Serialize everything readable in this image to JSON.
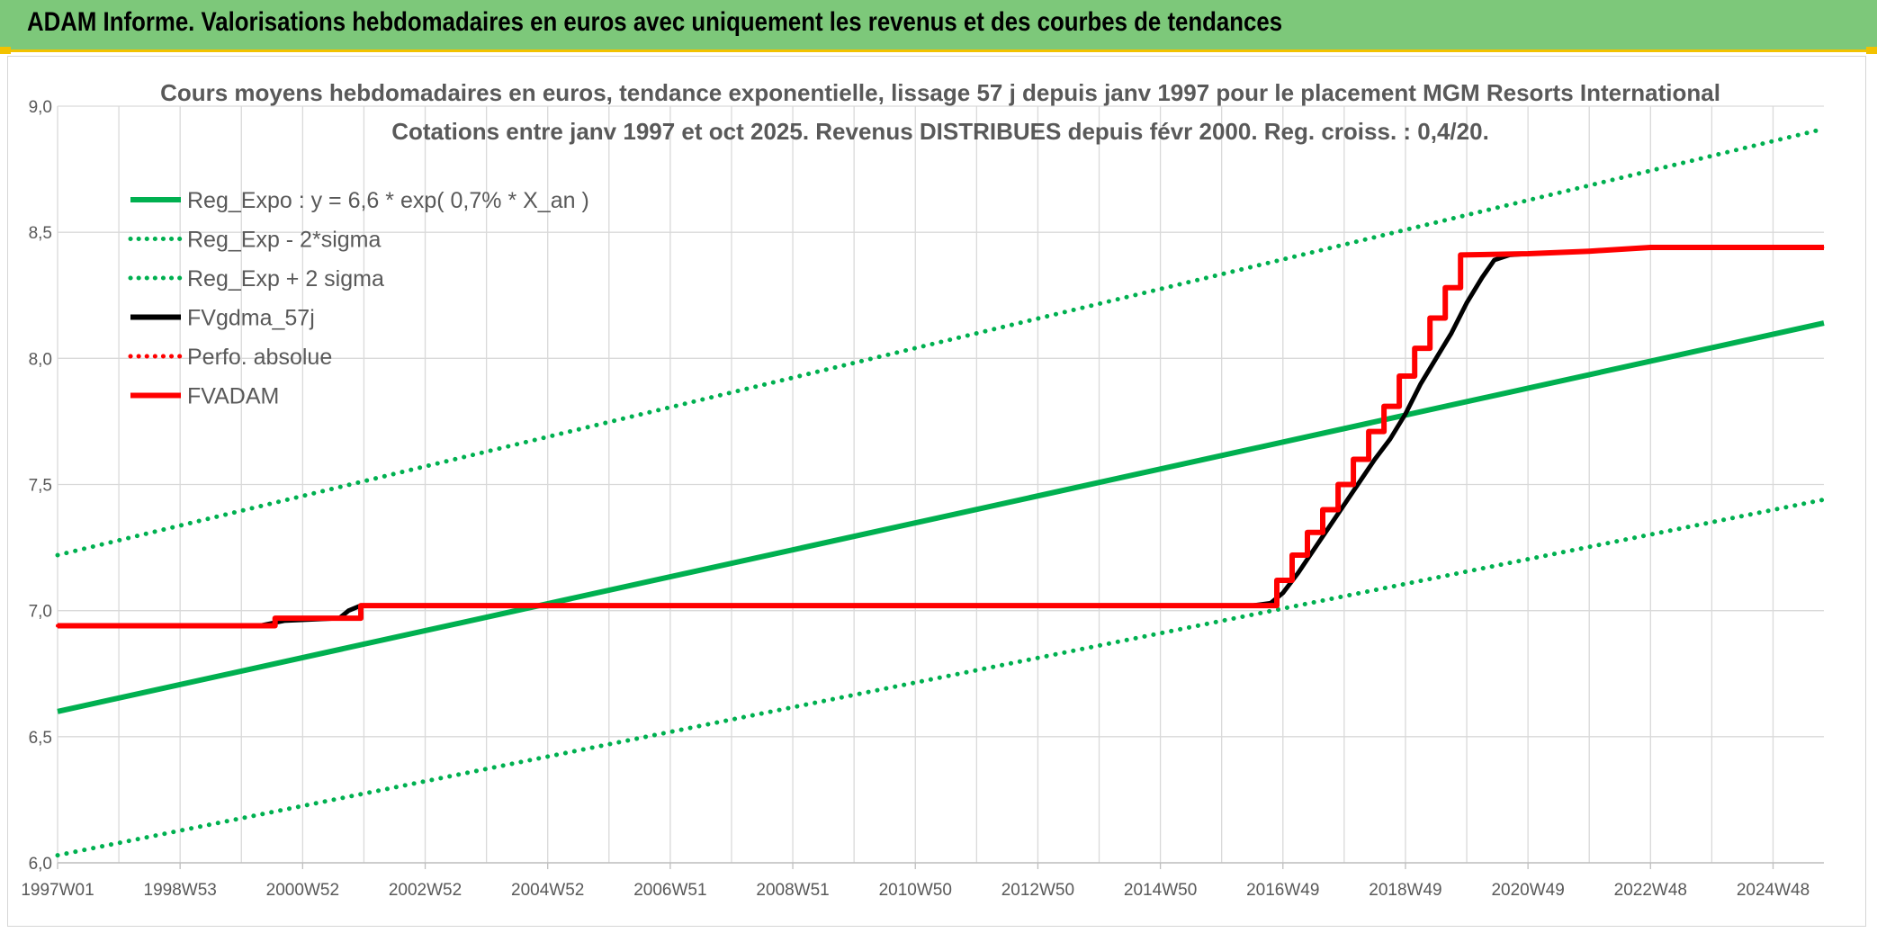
{
  "header": {
    "title": "ADAM Informe. Valorisations hebdomadaires en euros avec uniquement les revenus et des courbes de tendances"
  },
  "colors": {
    "header_bg": "#7dc87a",
    "accent_yellow": "#f2c200",
    "green": "#00b050",
    "black": "#000000",
    "red": "#ff0000",
    "grid": "#d9d9d9",
    "text": "#595959"
  },
  "chart_data": {
    "type": "line",
    "title": "Cours moyens hebdomadaires en euros, tendance exponentielle, lissage 57 j depuis janv 1997 pour le placement MGM Resorts International",
    "subtitle": "Cotations entre janv 1997 et oct 2025. Revenus DISTRIBUES depuis févr 2000. Reg. croiss. : 0,4/20.",
    "xlabel": "",
    "ylabel": "",
    "x_range": [
      1997.0,
      2025.83
    ],
    "ylim": [
      6.0,
      9.0
    ],
    "y_ticks": [
      "6,0",
      "6,5",
      "7,0",
      "7,5",
      "8,0",
      "8,5",
      "9,0"
    ],
    "x_tick_labels": [
      {
        "label": "1997W01",
        "x": 1997.0
      },
      {
        "label": "1998W53",
        "x": 1999.0
      },
      {
        "label": "2000W52",
        "x": 2001.0
      },
      {
        "label": "2002W52",
        "x": 2003.0
      },
      {
        "label": "2004W52",
        "x": 2005.0
      },
      {
        "label": "2006W51",
        "x": 2007.0
      },
      {
        "label": "2008W51",
        "x": 2009.0
      },
      {
        "label": "2010W50",
        "x": 2011.0
      },
      {
        "label": "2012W50",
        "x": 2013.0
      },
      {
        "label": "2014W50",
        "x": 2015.0
      },
      {
        "label": "2016W49",
        "x": 2017.0
      },
      {
        "label": "2018W49",
        "x": 2019.0
      },
      {
        "label": "2020W49",
        "x": 2021.0
      },
      {
        "label": "2022W48",
        "x": 2023.0
      },
      {
        "label": "2024W48",
        "x": 2025.0
      }
    ],
    "grid": true,
    "legend_position": "top-left",
    "series": [
      {
        "name": "Reg_Expo : y = 6,6 * exp( 0,7% *  X_an )",
        "color": "#00b050",
        "style": "solid",
        "points": [
          [
            1997.0,
            6.6
          ],
          [
            2025.83,
            8.14
          ]
        ]
      },
      {
        "name": "Reg_Exp - 2*sigma",
        "color": "#00b050",
        "style": "dotted",
        "points": [
          [
            1997.0,
            6.03
          ],
          [
            2025.83,
            7.44
          ]
        ]
      },
      {
        "name": "Reg_Exp + 2 sigma",
        "color": "#00b050",
        "style": "dotted",
        "points": [
          [
            1997.0,
            7.22
          ],
          [
            2025.83,
            8.91
          ]
        ]
      },
      {
        "name": "FVgdma_57j",
        "color": "#000000",
        "style": "solid",
        "points": [
          [
            1997.0,
            6.94
          ],
          [
            2000.3,
            6.94
          ],
          [
            2000.5,
            6.95
          ],
          [
            2000.7,
            6.96
          ],
          [
            2001.6,
            6.97
          ],
          [
            2001.75,
            7.0
          ],
          [
            2001.95,
            7.02
          ],
          [
            2016.5,
            7.02
          ],
          [
            2016.8,
            7.03
          ],
          [
            2017.0,
            7.07
          ],
          [
            2017.25,
            7.15
          ],
          [
            2017.5,
            7.24
          ],
          [
            2017.75,
            7.33
          ],
          [
            2018.0,
            7.42
          ],
          [
            2018.25,
            7.51
          ],
          [
            2018.5,
            7.6
          ],
          [
            2018.75,
            7.68
          ],
          [
            2019.0,
            7.78
          ],
          [
            2019.25,
            7.9
          ],
          [
            2019.5,
            8.0
          ],
          [
            2019.75,
            8.1
          ],
          [
            2020.0,
            8.22
          ],
          [
            2020.25,
            8.32
          ],
          [
            2020.45,
            8.39
          ],
          [
            2020.7,
            8.41
          ],
          [
            2021.0,
            8.415
          ],
          [
            2022.0,
            8.425
          ],
          [
            2023.0,
            8.44
          ],
          [
            2025.83,
            8.44
          ]
        ]
      },
      {
        "name": "Perfo. absolue",
        "color": "#ff0000",
        "style": "dotted",
        "points": [
          [
            1997.0,
            6.94
          ],
          [
            2000.55,
            6.94
          ],
          [
            2000.55,
            6.97
          ],
          [
            2001.95,
            6.97
          ],
          [
            2001.95,
            7.02
          ],
          [
            2016.9,
            7.02
          ],
          [
            2016.9,
            7.12
          ],
          [
            2017.15,
            7.12
          ],
          [
            2017.15,
            7.22
          ],
          [
            2017.4,
            7.22
          ],
          [
            2017.4,
            7.31
          ],
          [
            2017.65,
            7.31
          ],
          [
            2017.65,
            7.4
          ],
          [
            2017.9,
            7.4
          ],
          [
            2017.9,
            7.5
          ],
          [
            2018.15,
            7.5
          ],
          [
            2018.15,
            7.6
          ],
          [
            2018.4,
            7.6
          ],
          [
            2018.4,
            7.71
          ],
          [
            2018.65,
            7.71
          ],
          [
            2018.65,
            7.81
          ],
          [
            2018.9,
            7.81
          ],
          [
            2018.9,
            7.93
          ],
          [
            2019.15,
            7.93
          ],
          [
            2019.15,
            8.04
          ],
          [
            2019.4,
            8.04
          ],
          [
            2019.4,
            8.16
          ],
          [
            2019.65,
            8.16
          ],
          [
            2019.65,
            8.28
          ],
          [
            2019.9,
            8.28
          ],
          [
            2019.9,
            8.41
          ],
          [
            2021.0,
            8.415
          ],
          [
            2022.0,
            8.425
          ],
          [
            2023.0,
            8.44
          ],
          [
            2025.83,
            8.44
          ]
        ]
      },
      {
        "name": "FVADAM",
        "color": "#ff0000",
        "style": "solid",
        "points": [
          [
            1997.0,
            6.94
          ],
          [
            2000.55,
            6.94
          ],
          [
            2000.55,
            6.97
          ],
          [
            2001.95,
            6.97
          ],
          [
            2001.95,
            7.02
          ],
          [
            2016.9,
            7.02
          ],
          [
            2016.9,
            7.12
          ],
          [
            2017.15,
            7.12
          ],
          [
            2017.15,
            7.22
          ],
          [
            2017.4,
            7.22
          ],
          [
            2017.4,
            7.31
          ],
          [
            2017.65,
            7.31
          ],
          [
            2017.65,
            7.4
          ],
          [
            2017.9,
            7.4
          ],
          [
            2017.9,
            7.5
          ],
          [
            2018.15,
            7.5
          ],
          [
            2018.15,
            7.6
          ],
          [
            2018.4,
            7.6
          ],
          [
            2018.4,
            7.71
          ],
          [
            2018.65,
            7.71
          ],
          [
            2018.65,
            7.81
          ],
          [
            2018.9,
            7.81
          ],
          [
            2018.9,
            7.93
          ],
          [
            2019.15,
            7.93
          ],
          [
            2019.15,
            8.04
          ],
          [
            2019.4,
            8.04
          ],
          [
            2019.4,
            8.16
          ],
          [
            2019.65,
            8.16
          ],
          [
            2019.65,
            8.28
          ],
          [
            2019.9,
            8.28
          ],
          [
            2019.9,
            8.41
          ],
          [
            2021.0,
            8.415
          ],
          [
            2022.0,
            8.425
          ],
          [
            2023.0,
            8.44
          ],
          [
            2025.83,
            8.44
          ]
        ]
      }
    ]
  }
}
